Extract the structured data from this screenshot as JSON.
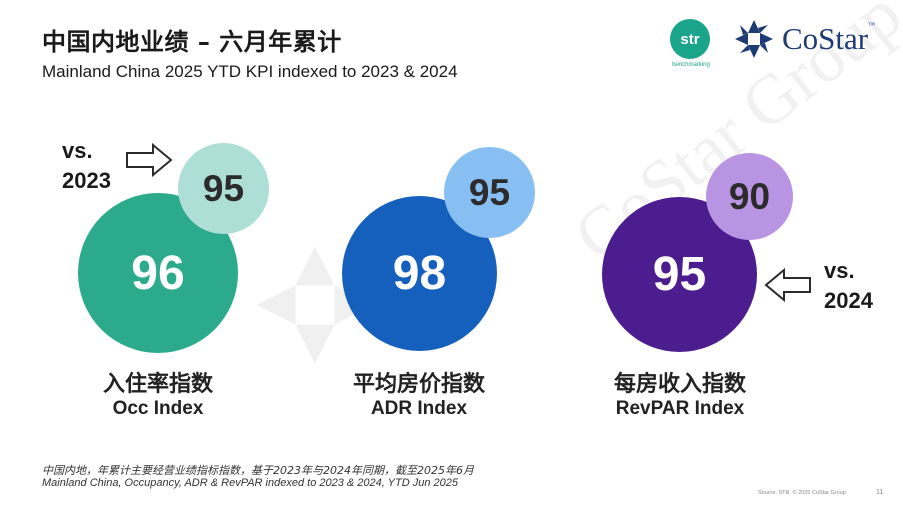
{
  "header": {
    "title": "中国内地业绩 – 六月年累计",
    "subtitle": "Mainland China 2025 YTD KPI indexed to 2023 & 2024"
  },
  "logos": {
    "str_text": "str",
    "str_sub": "benchmarking",
    "costar_text": "CoStar",
    "costar_tm": "™",
    "watermark_text": "CoStar Group"
  },
  "comparisons": {
    "vs_2023": "vs.\n2023",
    "vs_2024": "vs.\n2024"
  },
  "kpis": [
    {
      "value_ytd": "96",
      "value_vs2023": "95",
      "label_cn": "入住率指数",
      "label_en": "Occ Index",
      "color": "#2bab8c",
      "color_light": "#aedfd6"
    },
    {
      "value_ytd": "98",
      "value_vs2023": "95",
      "label_cn": "平均房价指数",
      "label_en": "ADR Index",
      "color": "#1560bd",
      "color_light": "#88bff3"
    },
    {
      "value_ytd": "95",
      "value_vs2023": "90",
      "label_cn": "每房收入指数",
      "label_en": "RevPAR Index",
      "color": "#4b1d8e",
      "color_light": "#b994e3"
    }
  ],
  "footer": {
    "note_cn": "中国内地，年累计主要经营业绩指标指数，基于2023年与2024年同期，截至2025年6月",
    "note_en": "Mainland China, Occupancy, ADR & RevPAR indexed to 2023 & 2024, YTD Jun 2025",
    "source": "Source: STR. © 2025 CoStar Group",
    "page_number": "11"
  }
}
